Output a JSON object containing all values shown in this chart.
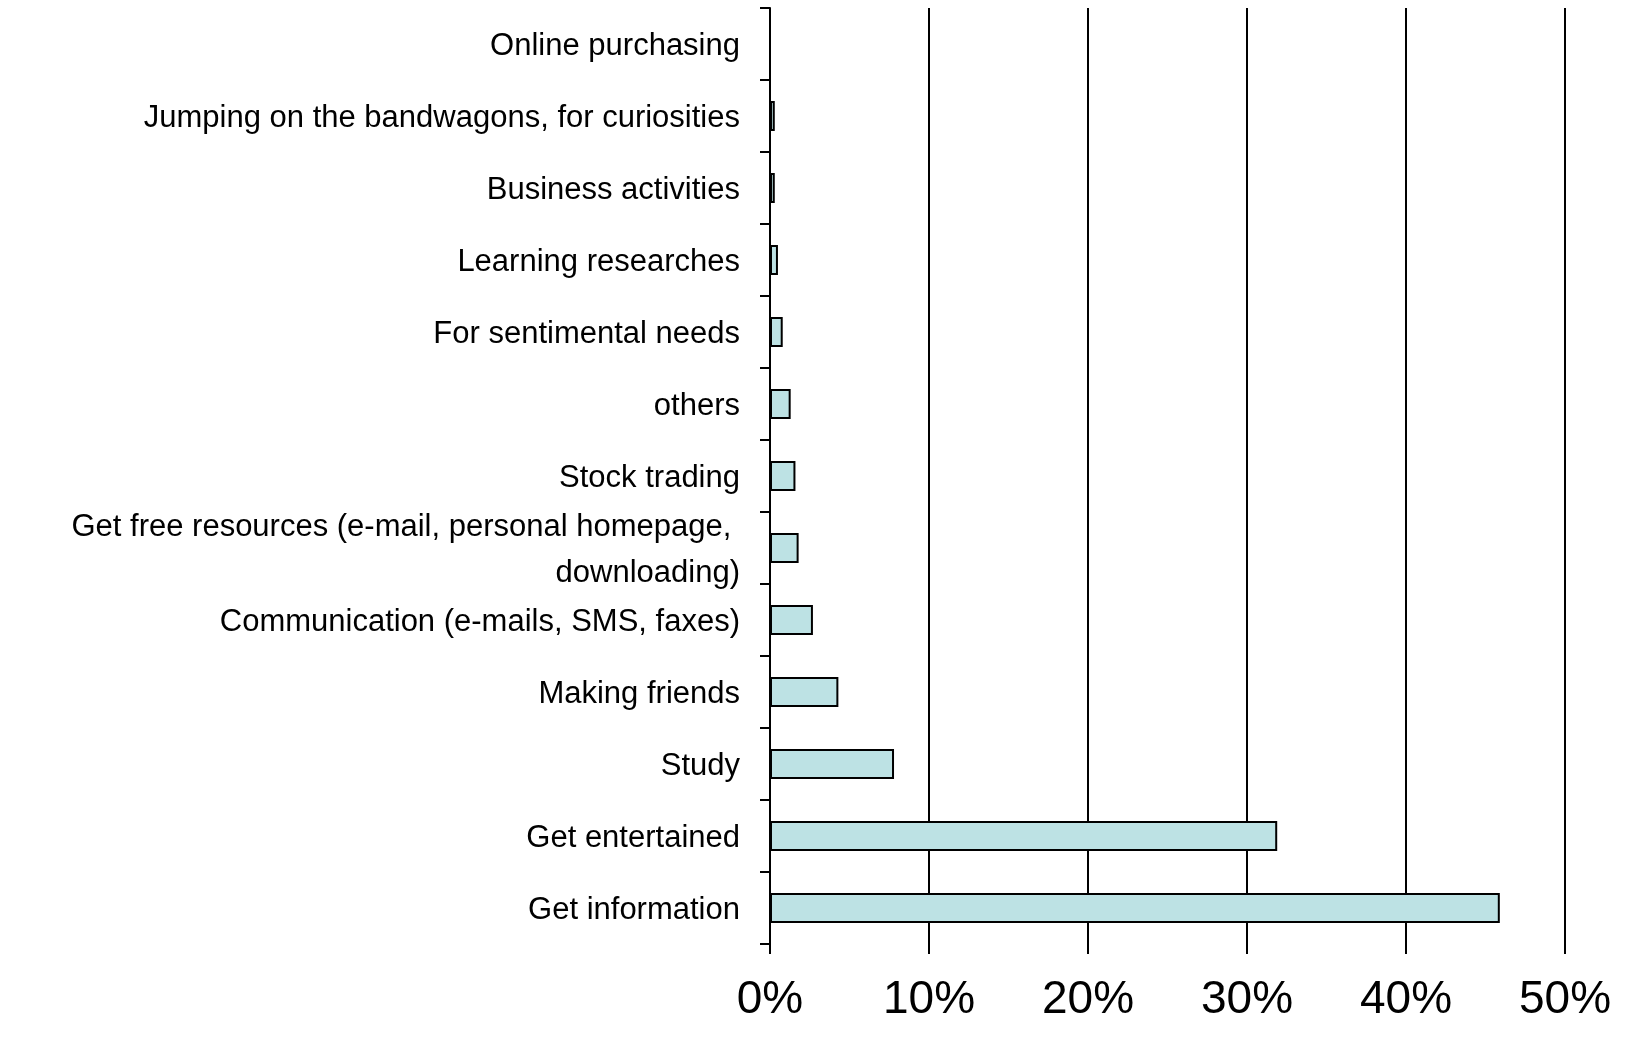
{
  "chart_data": {
    "type": "bar",
    "orientation": "horizontal",
    "categories": [
      "Online purchasing",
      "Jumping on the bandwagons, for curiosities",
      "Business activities",
      "Learning researches",
      "For sentimental needs",
      "others",
      "Stock trading",
      "Get free resources (e-mail, personal homepage, downloading)",
      "Communication (e-mails, SMS, faxes)",
      "Making friends",
      "Study",
      "Get entertained",
      "Get information"
    ],
    "values": [
      0,
      0.3,
      0.3,
      0.5,
      0.8,
      1.3,
      1.6,
      1.8,
      2.7,
      4.3,
      7.8,
      31.9,
      45.9
    ],
    "color": "#bde2e4",
    "xlim": [
      0,
      50
    ],
    "xticks": [
      {
        "value": 0,
        "label": "0%"
      },
      {
        "value": 10,
        "label": "10%"
      },
      {
        "value": 20,
        "label": "20%"
      },
      {
        "value": 30,
        "label": "30%"
      },
      {
        "value": 40,
        "label": "40%"
      },
      {
        "value": 50,
        "label": "50%"
      }
    ],
    "grid": "x"
  }
}
